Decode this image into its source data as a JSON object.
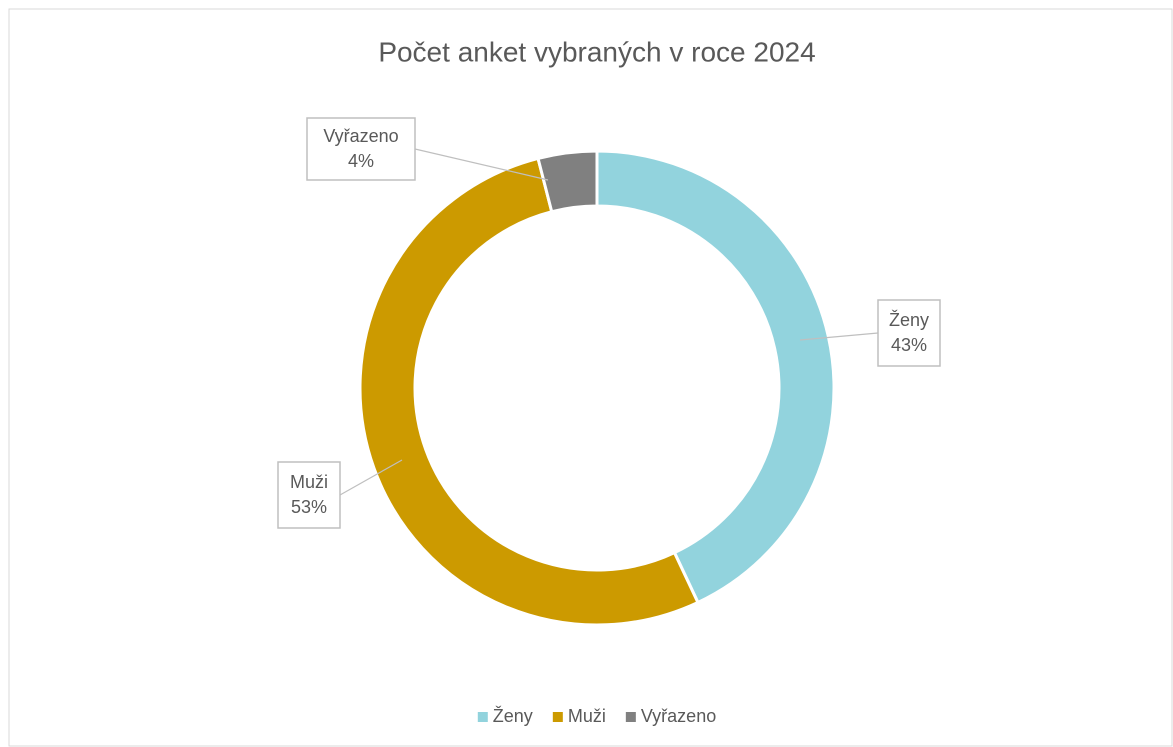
{
  "chart_data": {
    "type": "donut",
    "title": "Počet anket vybraných v roce 2024",
    "categories": [
      "Ženy",
      "Muži",
      "Vyřazeno"
    ],
    "values": [
      43,
      53,
      4
    ],
    "value_labels": [
      "43%",
      "53%",
      "4%"
    ],
    "colors": [
      "#92d3dd",
      "#cc9a00",
      "#808080"
    ],
    "legend": "bottom"
  }
}
